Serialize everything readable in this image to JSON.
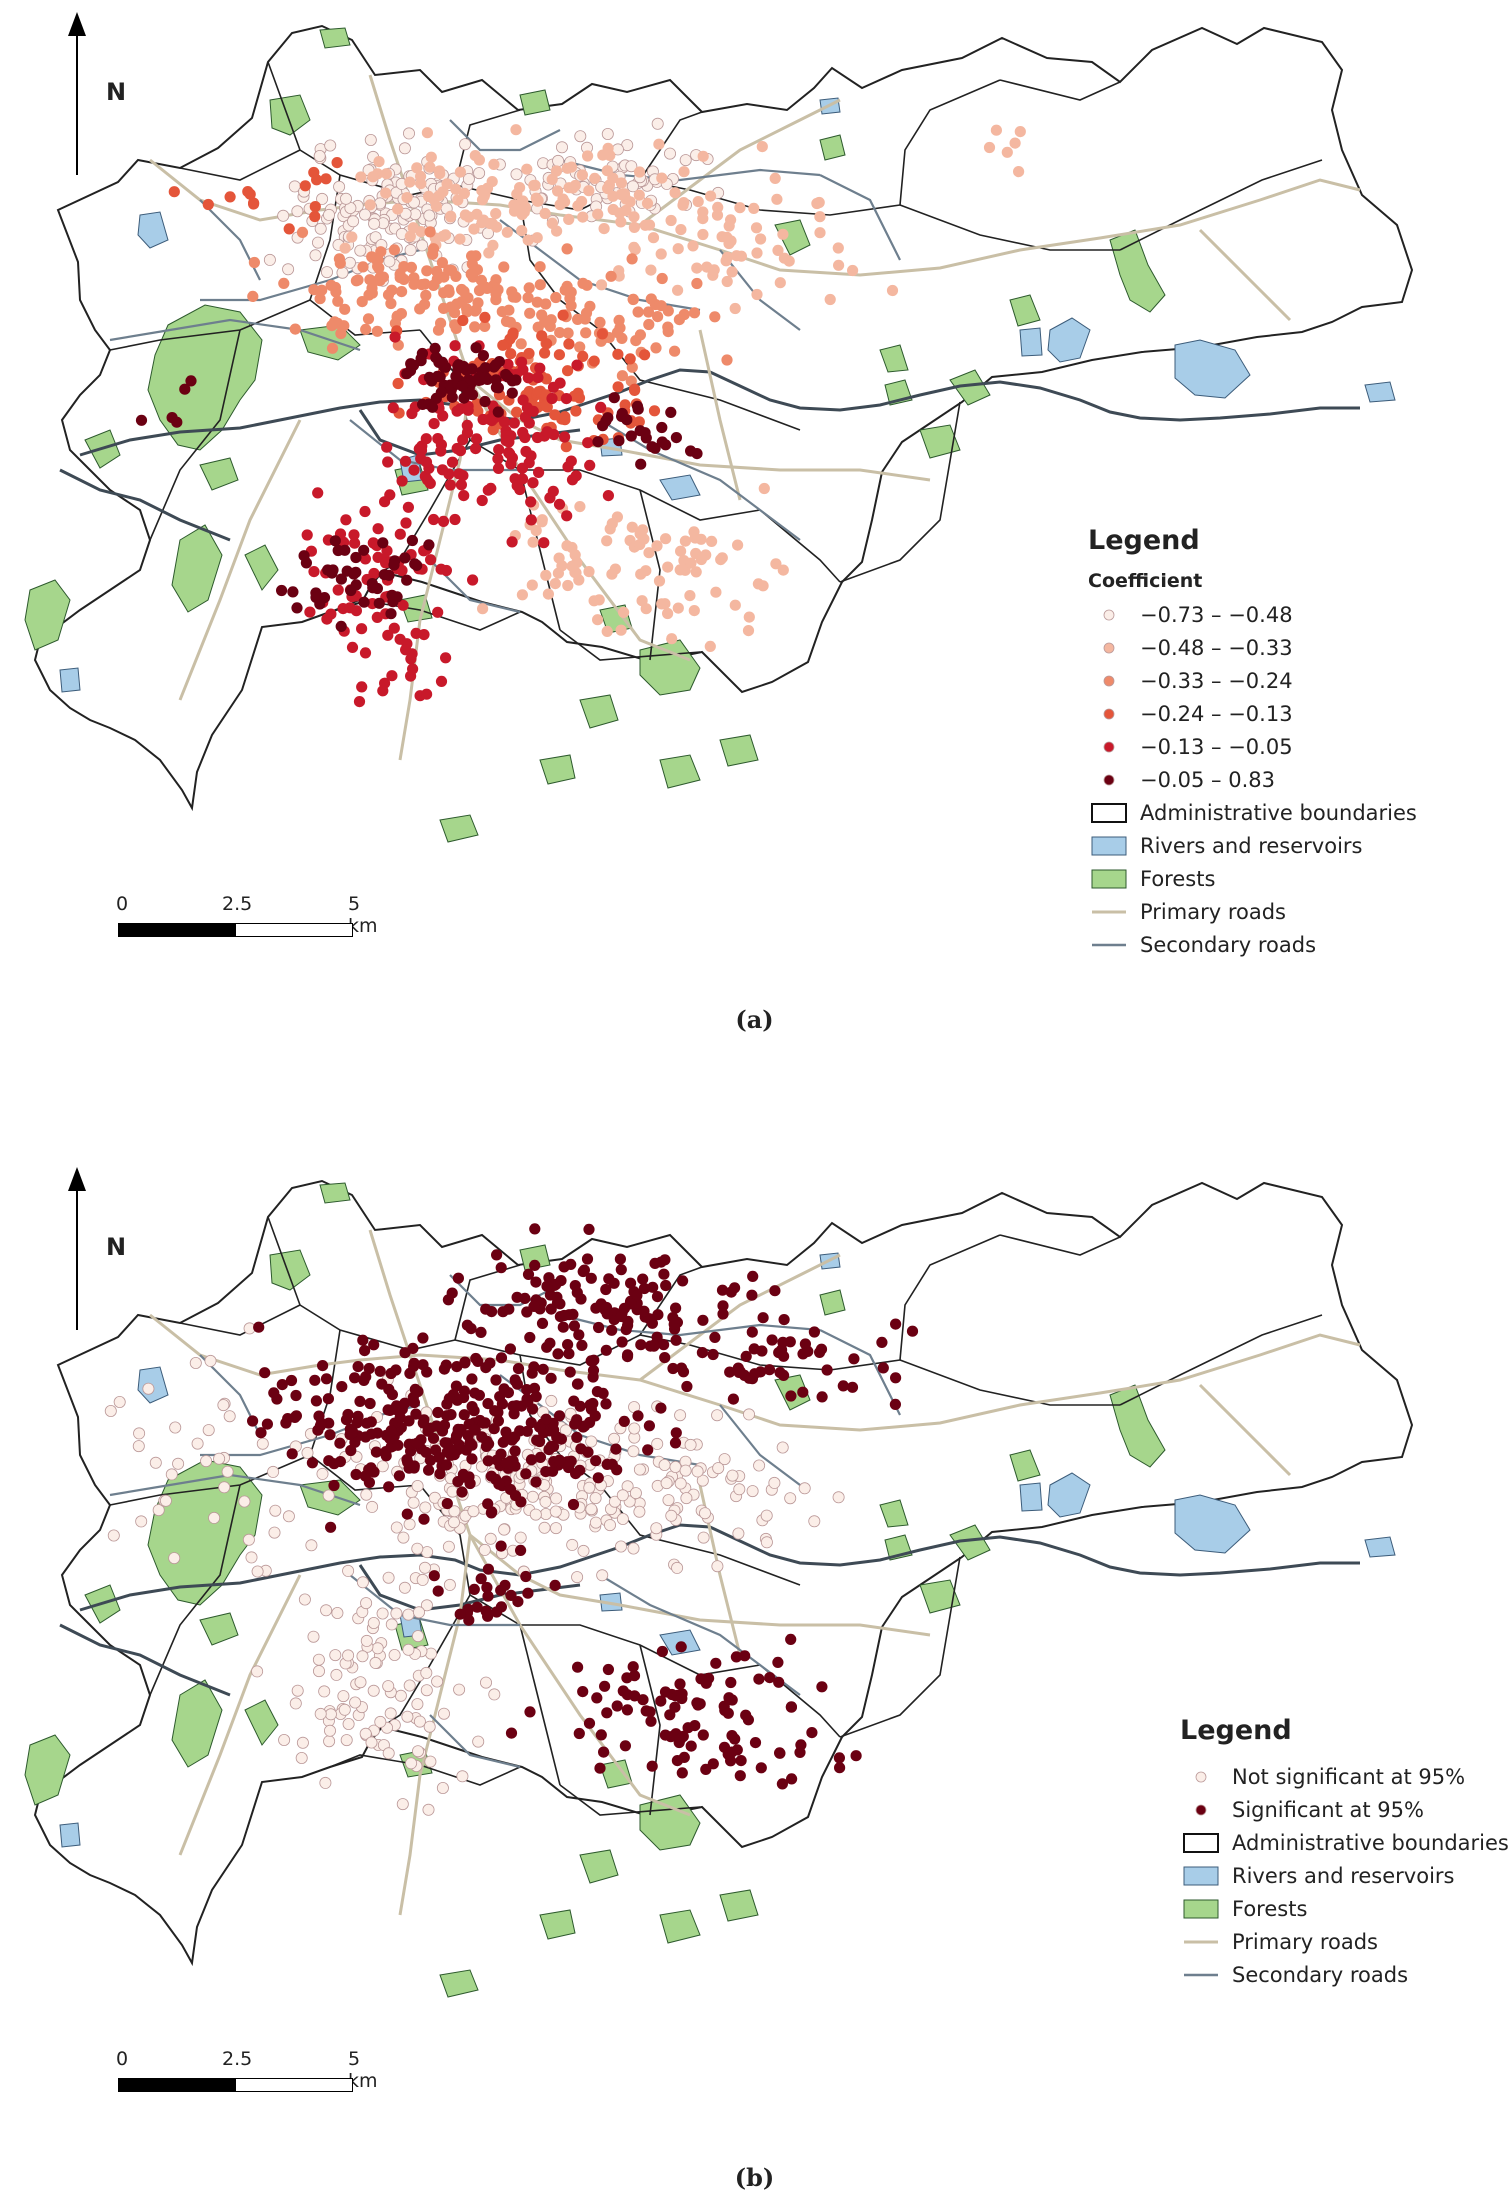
{
  "north_label": "N",
  "scale": {
    "labels": [
      "0",
      "2.5",
      "5 km"
    ]
  },
  "colors": {
    "boundary": "#222222",
    "forest": "#a6d68c",
    "forest_stroke": "#2d5a2d",
    "water": "#a8cde8",
    "water_stroke": "#3c5c7a",
    "primary_road": "#c9bfa6",
    "secondary_road": "#6e7f8e",
    "river": "#3e4a55"
  },
  "panel_a": {
    "caption": "(a)",
    "legend_title": "Legend",
    "legend_subtitle": "Coefficient",
    "classes": [
      {
        "label": "−0.73 – −0.48",
        "color": "#fbeee8"
      },
      {
        "label": "−0.48 – −0.33",
        "color": "#f4b7a0"
      },
      {
        "label": "−0.33 – −0.24",
        "color": "#ee8a6a"
      },
      {
        "label": "−0.24 – −0.13",
        "color": "#e4553a"
      },
      {
        "label": "−0.13 – −0.05",
        "color": "#c8192a"
      },
      {
        "label": "−0.05 – 0.83",
        "color": "#6b0012"
      }
    ],
    "layers": [
      {
        "label": "Administrative boundaries",
        "kind": "boundary"
      },
      {
        "label": "Rivers and reservoirs",
        "kind": "water"
      },
      {
        "label": "Forests",
        "kind": "forest"
      },
      {
        "label": "Primary roads",
        "kind": "primary"
      },
      {
        "label": "Secondary roads",
        "kind": "secondary"
      }
    ]
  },
  "panel_b": {
    "caption": "(b)",
    "legend_title": "Legend",
    "classes": [
      {
        "label": "Not significant at 95%",
        "color": "#fbeee8"
      },
      {
        "label": "Significant at 95%",
        "color": "#6b0012"
      }
    ],
    "layers": [
      {
        "label": "Administrative boundaries",
        "kind": "boundary"
      },
      {
        "label": "Rivers and reservoirs",
        "kind": "water"
      },
      {
        "label": "Forests",
        "kind": "forest"
      },
      {
        "label": "Primary roads",
        "kind": "primary"
      },
      {
        "label": "Secondary roads",
        "kind": "secondary"
      }
    ]
  }
}
